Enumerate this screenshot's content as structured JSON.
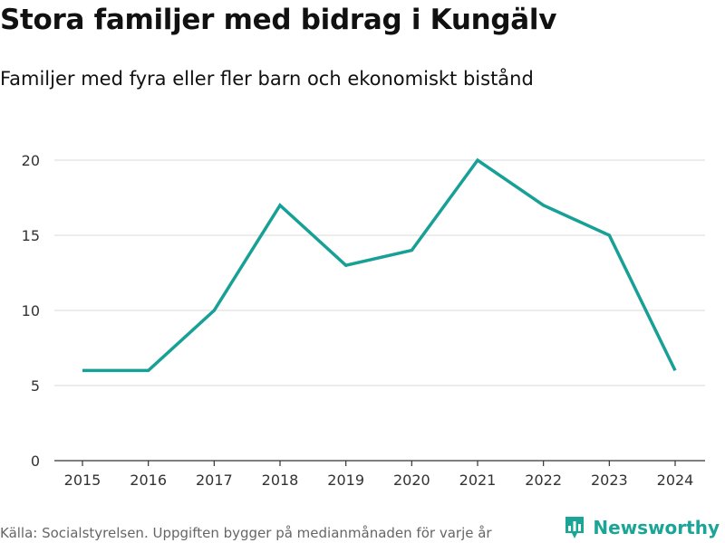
{
  "title": "Stora familjer med bidrag i Kungälv",
  "subtitle": "Familjer med fyra eller fler barn och ekonomiskt bistånd",
  "footer": {
    "source": "Källa: Socialstyrelsen. Uppgiften bygger på medianmånaden för varje år"
  },
  "logo": {
    "text": "Newsworthy",
    "icon": "bar-chart-icon"
  },
  "colors": {
    "line": "#17a096",
    "grid": "#d9d9d9",
    "axis": "#333333",
    "logo": "#1aa596"
  },
  "chart_data": {
    "type": "line",
    "title": "Stora familjer med bidrag i Kungälv",
    "subtitle": "Familjer med fyra eller fler barn och ekonomiskt bistånd",
    "xlabel": "",
    "ylabel": "",
    "x": [
      "2015",
      "2016",
      "2017",
      "2018",
      "2019",
      "2020",
      "2021",
      "2022",
      "2023",
      "2024"
    ],
    "series": [
      {
        "name": "Familjer med fyra eller fler barn och ekonomiskt bistånd",
        "values": [
          6,
          6,
          10,
          17,
          13,
          14,
          20,
          17,
          15,
          6
        ]
      }
    ],
    "ylim": [
      0,
      20
    ],
    "yticks": [
      0,
      5,
      10,
      15,
      20
    ],
    "grid": true,
    "legend": "none"
  }
}
